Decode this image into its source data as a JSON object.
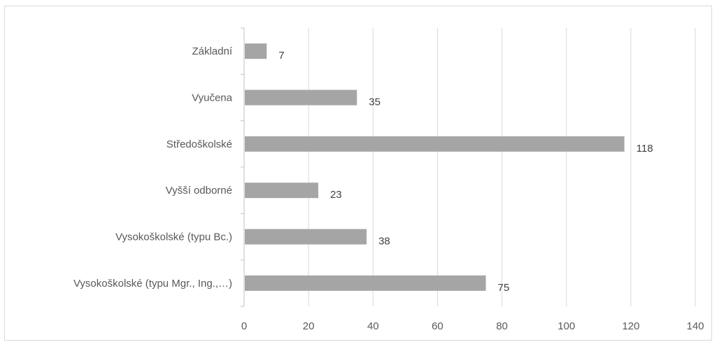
{
  "chart_data": {
    "type": "bar",
    "orientation": "horizontal",
    "categories": [
      "Základní",
      "Vyučena",
      "Středoškolské",
      "Vyšší odborné",
      "Vysokoškolské (typu Bc.)",
      "Vysokoškolské (typu Mgr., Ing.,…)"
    ],
    "values": [
      7,
      35,
      118,
      23,
      38,
      75
    ],
    "xlim": [
      0,
      140
    ],
    "x_ticks": [
      "0",
      "20",
      "40",
      "60",
      "80",
      "100",
      "120",
      "140"
    ],
    "grid": true,
    "data_labels": true,
    "legend": "none",
    "colors": {
      "bar": "#a5a5a5",
      "grid": "#d9d9d9",
      "axis": "#bfbfbf",
      "text": "#595959"
    }
  }
}
